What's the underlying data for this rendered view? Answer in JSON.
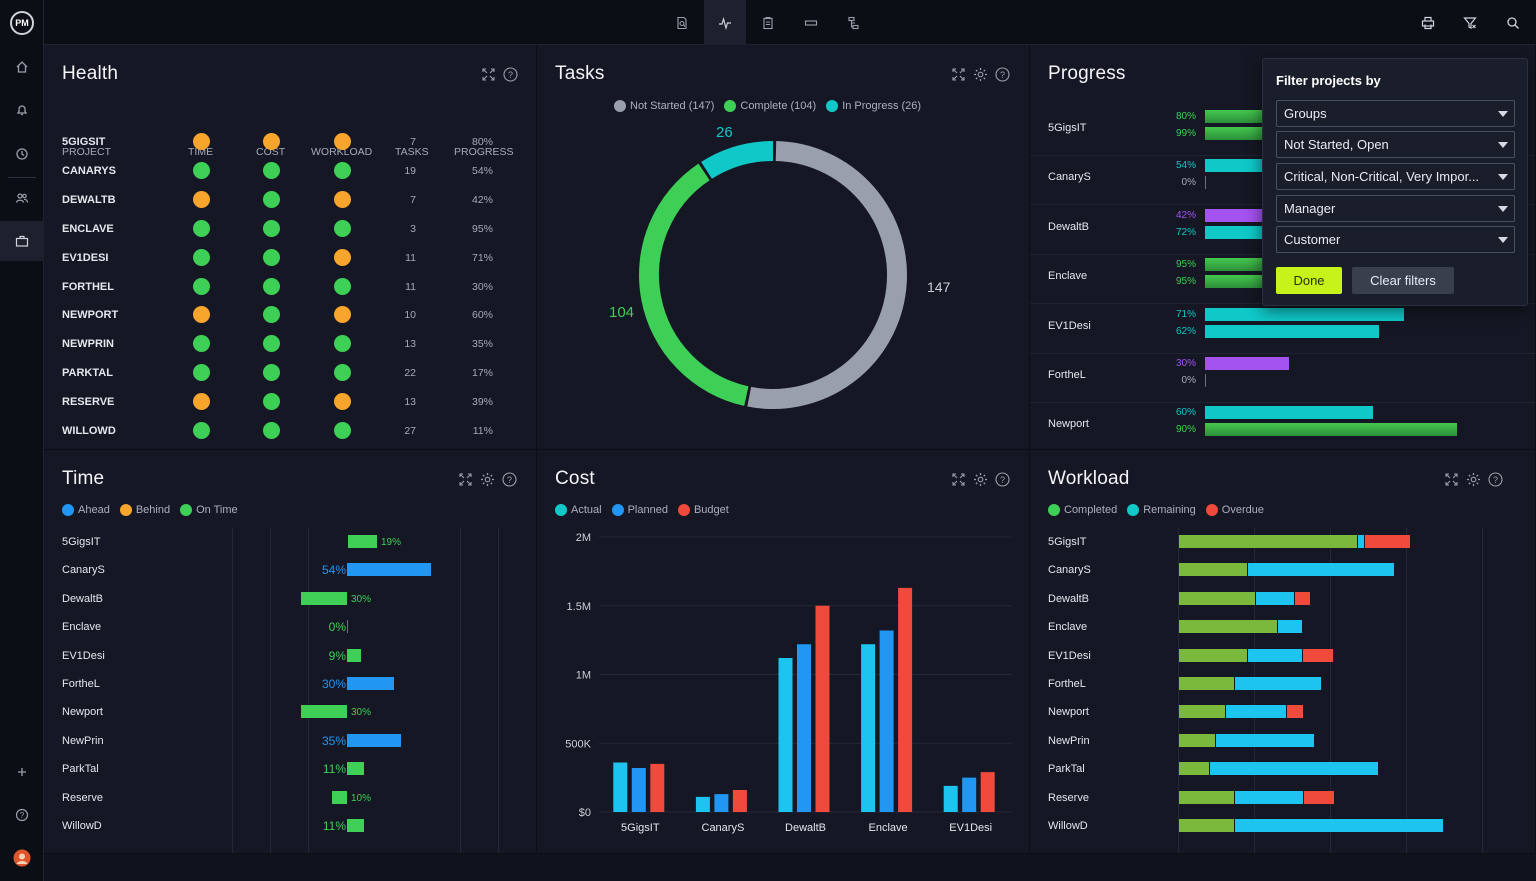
{
  "app": {
    "logo": "PM"
  },
  "rail_icons": [
    "home-icon",
    "bell-icon",
    "clock-icon",
    "people-icon",
    "briefcase-icon",
    "plus-icon",
    "help-icon",
    "user-avatar"
  ],
  "top_icons": [
    "search-doc-icon",
    "pulse-icon",
    "clipboard-icon",
    "ruler-icon",
    "hierarchy-icon",
    "print-icon",
    "filter-clear-icon",
    "search-icon"
  ],
  "colors": {
    "green": "#3ecf56",
    "orange": "#f7a52c",
    "cyan": "#10c8c8",
    "blue": "#2196f3",
    "red": "#ef4a3c",
    "gray": "#9aa0ab",
    "purple": "#a452f0",
    "lime": "#7ab93c",
    "sky": "#1ec4f0",
    "progress_green": "#3fa94a"
  },
  "health": {
    "title": "Health",
    "headers": {
      "project": "PROJECT",
      "time": "TIME",
      "cost": "COST",
      "workload": "WORKLOAD",
      "tasks": "TASKS",
      "progress": "PROGRESS"
    },
    "rows": [
      {
        "name": "5GIGSIT",
        "time": "orange",
        "cost": "orange",
        "workload": "orange",
        "tasks": "7",
        "progress": "80%"
      },
      {
        "name": "CANARYS",
        "time": "green",
        "cost": "green",
        "workload": "green",
        "tasks": "19",
        "progress": "54%"
      },
      {
        "name": "DEWALTB",
        "time": "orange",
        "cost": "green",
        "workload": "orange",
        "tasks": "7",
        "progress": "42%"
      },
      {
        "name": "ENCLAVE",
        "time": "green",
        "cost": "green",
        "workload": "green",
        "tasks": "3",
        "progress": "95%"
      },
      {
        "name": "EV1DESI",
        "time": "green",
        "cost": "green",
        "workload": "orange",
        "tasks": "11",
        "progress": "71%"
      },
      {
        "name": "FORTHEL",
        "time": "green",
        "cost": "green",
        "workload": "green",
        "tasks": "11",
        "progress": "30%"
      },
      {
        "name": "NEWPORT",
        "time": "orange",
        "cost": "green",
        "workload": "orange",
        "tasks": "10",
        "progress": "60%"
      },
      {
        "name": "NEWPRIN",
        "time": "green",
        "cost": "green",
        "workload": "green",
        "tasks": "13",
        "progress": "35%"
      },
      {
        "name": "PARKTAL",
        "time": "green",
        "cost": "green",
        "workload": "green",
        "tasks": "22",
        "progress": "17%"
      },
      {
        "name": "RESERVE",
        "time": "orange",
        "cost": "green",
        "workload": "orange",
        "tasks": "13",
        "progress": "39%"
      },
      {
        "name": "WILLOWD",
        "time": "green",
        "cost": "green",
        "workload": "green",
        "tasks": "27",
        "progress": "11%"
      }
    ]
  },
  "tasks": {
    "title": "Tasks",
    "legend": [
      "Not Started (147)",
      "Complete (104)",
      "In Progress (26)"
    ],
    "labels": {
      "not_started": "147",
      "complete": "104",
      "in_progress": "26"
    }
  },
  "progress": {
    "title": "Progress",
    "rows": [
      {
        "name": "5GigsIT",
        "a": "80%",
        "b": "99%",
        "a_color": "green",
        "b_color": "green",
        "a_val": 0.8,
        "b_val": 0.99
      },
      {
        "name": "CanaryS",
        "a": "54%",
        "b": "0%",
        "a_color": "cyan",
        "b_color": "none",
        "a_val": 0.54,
        "b_val": 0
      },
      {
        "name": "DewaltB",
        "a": "42%",
        "b": "72%",
        "a_color": "purple",
        "b_color": "cyan",
        "a_val": 0.42,
        "b_val": 0.72
      },
      {
        "name": "Enclave",
        "a": "95%",
        "b": "95%",
        "a_color": "green",
        "b_color": "green",
        "a_val": 0.95,
        "b_val": 0.95
      },
      {
        "name": "EV1Desi",
        "a": "71%",
        "b": "62%",
        "a_color": "cyan",
        "b_color": "cyan",
        "a_val": 0.71,
        "b_val": 0.62
      },
      {
        "name": "FortheL",
        "a": "30%",
        "b": "0%",
        "a_color": "purple",
        "b_color": "none",
        "a_val": 0.3,
        "b_val": 0
      },
      {
        "name": "Newport",
        "a": "60%",
        "b": "90%",
        "a_color": "cyan",
        "b_color": "green",
        "a_val": 0.6,
        "b_val": 0.9
      }
    ]
  },
  "filter": {
    "title": "Filter projects by",
    "selects": [
      "Groups",
      "Not Started, Open",
      "Critical, Non-Critical, Very Impor...",
      "Manager",
      "Customer"
    ],
    "done": "Done",
    "clear": "Clear filters"
  },
  "time": {
    "title": "Time",
    "legend": [
      "Ahead",
      "Behind",
      "On Time"
    ],
    "rows": [
      {
        "name": "5GigsIT",
        "label": "19%",
        "side": "right",
        "color": "green",
        "value": 0.19,
        "big": false
      },
      {
        "name": "CanaryS",
        "label": "54%",
        "side": "right",
        "color": "blue",
        "value": 0.54,
        "big": true
      },
      {
        "name": "DewaltB",
        "label": "30%",
        "side": "left",
        "color": "green",
        "value": 0.3,
        "big": false
      },
      {
        "name": "Enclave",
        "label": "0%",
        "side": "right",
        "color": "green",
        "value": 0,
        "big": true
      },
      {
        "name": "EV1Desi",
        "label": "9%",
        "side": "right",
        "color": "green",
        "value": 0.09,
        "big": true
      },
      {
        "name": "FortheL",
        "label": "30%",
        "side": "right",
        "color": "blue",
        "value": 0.3,
        "big": true
      },
      {
        "name": "Newport",
        "label": "30%",
        "side": "left",
        "color": "green",
        "value": 0.3,
        "big": false
      },
      {
        "name": "NewPrin",
        "label": "35%",
        "side": "right",
        "color": "blue",
        "value": 0.35,
        "big": true
      },
      {
        "name": "ParkTal",
        "label": "11%",
        "side": "right",
        "color": "green",
        "value": 0.11,
        "big": true
      },
      {
        "name": "Reserve",
        "label": "10%",
        "side": "left",
        "color": "green",
        "value": 0.1,
        "big": false
      },
      {
        "name": "WillowD",
        "label": "11%",
        "side": "right",
        "color": "green",
        "value": 0.11,
        "big": true
      }
    ]
  },
  "cost": {
    "title": "Cost",
    "legend": [
      "Actual",
      "Planned",
      "Budget"
    ]
  },
  "workload": {
    "title": "Workload",
    "legend": [
      "Completed",
      "Remaining",
      "Overdue"
    ],
    "rows": [
      {
        "name": "5GigsIT",
        "completed": 178,
        "remaining": 6,
        "overdue": 45
      },
      {
        "name": "CanaryS",
        "completed": 68,
        "remaining": 146,
        "overdue": 0
      },
      {
        "name": "DewaltB",
        "completed": 76,
        "remaining": 38,
        "overdue": 15
      },
      {
        "name": "Enclave",
        "completed": 98,
        "remaining": 24,
        "overdue": 0
      },
      {
        "name": "EV1Desi",
        "completed": 68,
        "remaining": 54,
        "overdue": 30
      },
      {
        "name": "FortheL",
        "completed": 55,
        "remaining": 86,
        "overdue": 0
      },
      {
        "name": "Newport",
        "completed": 46,
        "remaining": 60,
        "overdue": 16
      },
      {
        "name": "NewPrin",
        "completed": 36,
        "remaining": 98,
        "overdue": 0
      },
      {
        "name": "ParkTal",
        "completed": 30,
        "remaining": 168,
        "overdue": 0
      },
      {
        "name": "Reserve",
        "completed": 55,
        "remaining": 68,
        "overdue": 30
      },
      {
        "name": "WillowD",
        "completed": 55,
        "remaining": 208,
        "overdue": 0
      }
    ]
  },
  "chart_data": [
    {
      "type": "pie",
      "categories": [
        "Not Started",
        "Complete",
        "In Progress"
      ],
      "values": [
        147,
        104,
        26
      ]
    },
    {
      "type": "bar",
      "categories": [
        "5GigsIT",
        "CanaryS",
        "DewaltB",
        "Enclave",
        "EV1Desi"
      ],
      "series": [
        {
          "name": "Actual",
          "values": [
            360000,
            110000,
            1120000,
            1220000,
            190000
          ]
        },
        {
          "name": "Planned",
          "values": [
            320000,
            130000,
            1220000,
            1320000,
            250000
          ]
        },
        {
          "name": "Budget",
          "values": [
            350000,
            160000,
            1500000,
            1630000,
            290000
          ]
        }
      ],
      "ylim": [
        0,
        2000000
      ],
      "yticks": [
        "$0",
        "500K",
        "1M",
        "1.5M",
        "2M"
      ]
    }
  ]
}
